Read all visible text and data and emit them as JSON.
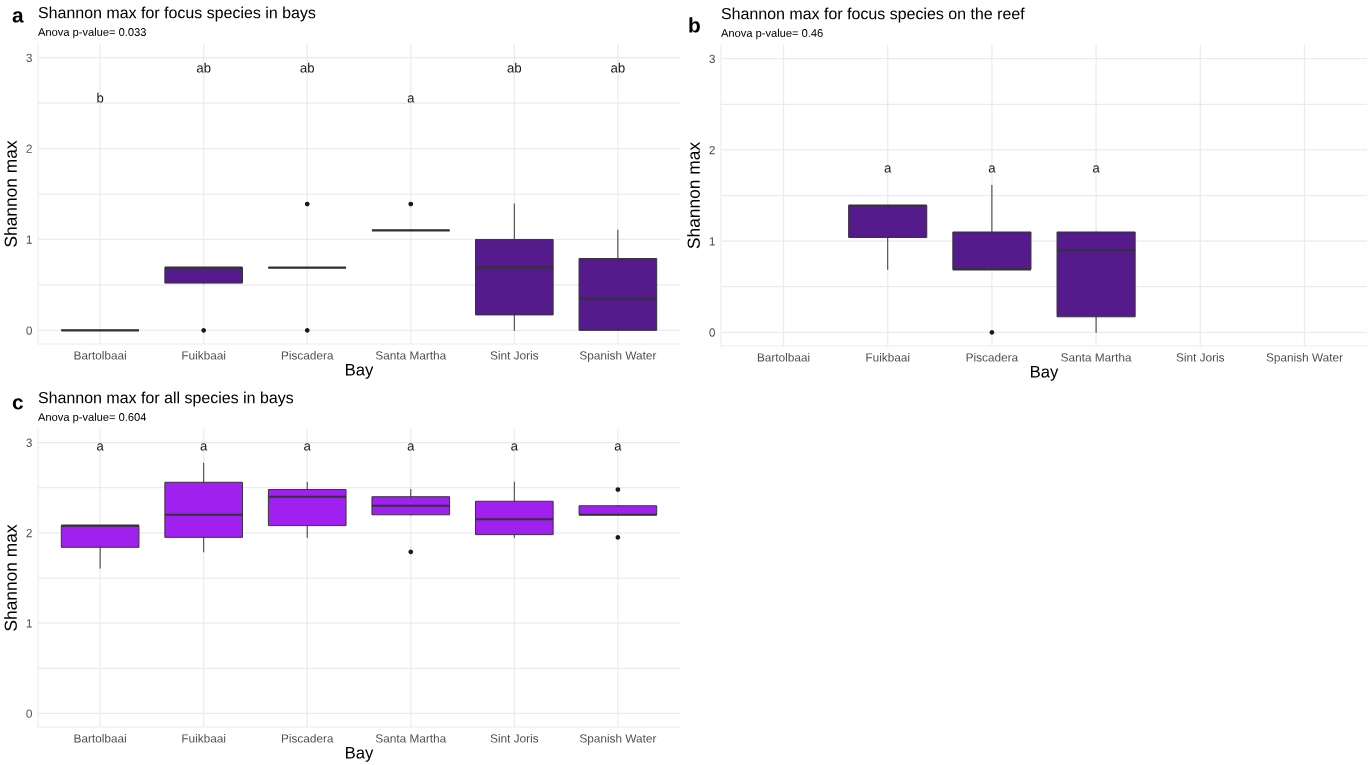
{
  "chart_data": [
    {
      "type": "box",
      "title": "Shannon max for focus species in bays",
      "subtitle": "Anova p-value= 0.033",
      "xlabel": "Bay",
      "ylabel": "Shannon max",
      "categories": [
        "Bartolbaai",
        "Fuikbaai",
        "Piscadera",
        "Santa Martha",
        "Sint Joris",
        "Spanish Water"
      ],
      "series": [
        {
          "colors": [
            "#333333",
            "#551a8b",
            "#333333",
            "#333333",
            "#551a8b",
            "#551a8b"
          ],
          "boxes": [
            {
              "low": 0,
              "q1": 0,
              "median": 0,
              "q3": 0,
              "high": 0
            },
            {
              "low": 0.52,
              "q1": 0.52,
              "median": 0.69,
              "q3": 0.69,
              "high": 0.69,
              "outliers": [
                0
              ]
            },
            {
              "low": 0.69,
              "q1": 0.69,
              "median": 0.69,
              "q3": 0.69,
              "high": 0.69,
              "outliers": [
                1.39,
                0
              ]
            },
            {
              "low": 1.1,
              "q1": 1.1,
              "median": 1.1,
              "q3": 1.1,
              "high": 1.1,
              "outliers": [
                1.39
              ]
            },
            {
              "low": 0,
              "q1": 0.17,
              "median": 0.69,
              "q3": 1.0,
              "high": 1.39
            },
            {
              "low": 0,
              "q1": 0,
              "median": 0.35,
              "q3": 0.79,
              "high": 1.1
            }
          ]
        }
      ],
      "ylim": [
        -0.15,
        3.15
      ],
      "yticks": [
        0,
        {
          "value": 0.5,
          "label": null
        },
        1,
        {
          "value": 1.5,
          "label": null
        },
        2,
        {
          "value": 2.5,
          "label": null
        },
        3
      ],
      "grid": true,
      "annotations": [
        "a",
        "b",
        "ab",
        "ab",
        "a",
        "ab",
        "ab"
      ]
    },
    {
      "type": "box",
      "title": "Shannon max for focus species on the reef",
      "subtitle": "Anova p-value= 0.46",
      "xlabel": "Bay",
      "ylabel": "Shannon max",
      "categories": [
        "Bartolbaai",
        "Fuikbaai",
        "Piscadera",
        "Santa Martha",
        "Sint Joris",
        "Spanish Water"
      ],
      "series": [
        {
          "color": "#551a8b",
          "boxes": [
            null,
            {
              "low": 0.69,
              "q1": 1.04,
              "median": 1.39,
              "q3": 1.39,
              "high": 1.39
            },
            {
              "low": 0.69,
              "q1": 0.69,
              "median": 0.69,
              "q3": 1.1,
              "high": 1.61,
              "outliers": [
                0
              ]
            },
            {
              "low": 0,
              "q1": 0.17,
              "median": 0.9,
              "q3": 1.1,
              "high": 1.1
            },
            null,
            null
          ]
        }
      ],
      "ylim": [
        -0.15,
        3.15
      ],
      "yticks": [
        0,
        {
          "value": 0.5,
          "label": null
        },
        1,
        {
          "value": 1.5,
          "label": null
        },
        2,
        {
          "value": 2.5,
          "label": null
        },
        3
      ],
      "grid": true,
      "annotations": [
        "b",
        "a",
        "a",
        "a"
      ]
    },
    {
      "type": "box",
      "title": "Shannon max for all species in bays",
      "subtitle": "Anova p-value= 0.604",
      "xlabel": "Bay",
      "ylabel": "Shannon max",
      "categories": [
        "Bartolbaai",
        "Fuikbaai",
        "Piscadera",
        "Santa Martha",
        "Sint Joris",
        "Spanish Water"
      ],
      "series": [
        {
          "color": "#a020f0",
          "boxes": [
            {
              "low": 1.61,
              "q1": 1.84,
              "median": 2.08,
              "q3": 2.08,
              "high": 2.08
            },
            {
              "low": 1.79,
              "q1": 1.95,
              "median": 2.2,
              "q3": 2.56,
              "high": 2.77
            },
            {
              "low": 1.95,
              "q1": 2.08,
              "median": 2.4,
              "q3": 2.48,
              "high": 2.56
            },
            {
              "low": 2.2,
              "q1": 2.2,
              "median": 2.3,
              "q3": 2.4,
              "high": 2.48,
              "outliers": [
                1.79
              ]
            },
            {
              "low": 1.95,
              "q1": 1.98,
              "median": 2.15,
              "q3": 2.35,
              "high": 2.56
            },
            {
              "low": 2.2,
              "q1": 2.2,
              "median": 2.2,
              "q3": 2.3,
              "high": 2.3,
              "outliers": [
                2.48,
                1.95
              ]
            }
          ]
        }
      ],
      "ylim": [
        -0.15,
        3.15
      ],
      "yticks": [
        0,
        {
          "value": 0.5,
          "label": null
        },
        1,
        {
          "value": 1.5,
          "label": null
        },
        2,
        {
          "value": 2.5,
          "label": null
        },
        3
      ],
      "grid": true,
      "annotations": [
        "c",
        "a",
        "a",
        "a",
        "a",
        "a",
        "a"
      ]
    }
  ]
}
